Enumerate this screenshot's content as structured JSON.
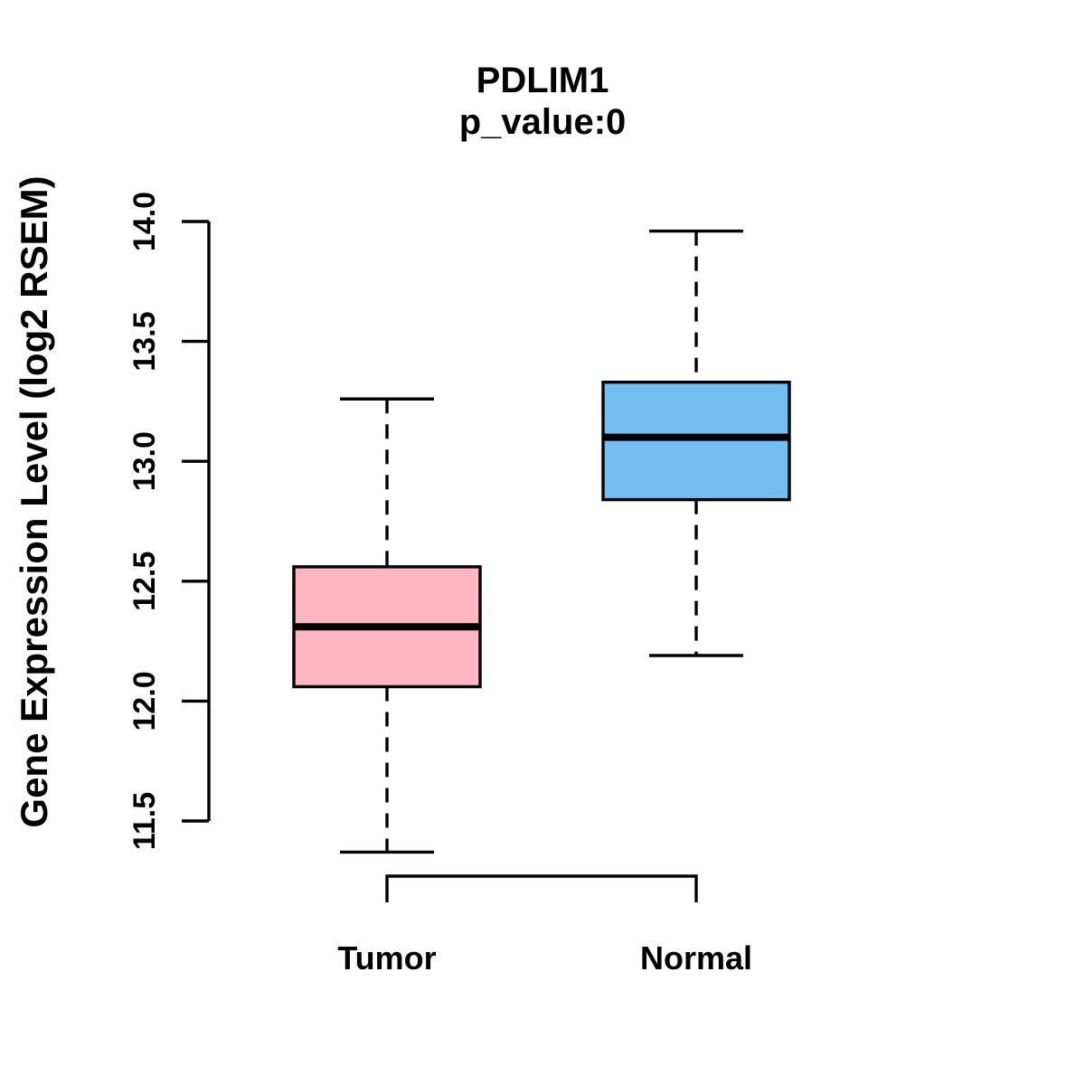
{
  "chart_data": {
    "type": "boxplot",
    "title": "PDLIM1",
    "subtitle": "p_value:0",
    "ylabel": "Gene Expression Level (log2 RSEM)",
    "xlabel": "",
    "categories": [
      "Tumor",
      "Normal"
    ],
    "series": [
      {
        "name": "Tumor",
        "whisker_low": 11.37,
        "q1": 12.06,
        "median": 12.31,
        "q3": 12.56,
        "whisker_high": 13.26,
        "fill_color": "#FFB6C1"
      },
      {
        "name": "Normal",
        "whisker_low": 12.19,
        "q1": 12.84,
        "median": 13.1,
        "q3": 13.33,
        "whisker_high": 13.96,
        "fill_color": "#72BEF2"
      }
    ],
    "y_ticks": [
      {
        "value": 11.5,
        "label": "11.5"
      },
      {
        "value": 12.0,
        "label": "12.0"
      },
      {
        "value": 12.5,
        "label": "12.5"
      },
      {
        "value": 13.0,
        "label": "13.0"
      },
      {
        "value": 13.5,
        "label": "13.5"
      },
      {
        "value": 14.0,
        "label": "14.0"
      }
    ],
    "ylim": [
      11.5,
      14.0
    ],
    "grid": false,
    "legend": "none",
    "stroke_color": "#000000",
    "background_color": "#FFFFFF",
    "comparison_bracket": {
      "from": "Tumor",
      "to": "Normal"
    }
  }
}
